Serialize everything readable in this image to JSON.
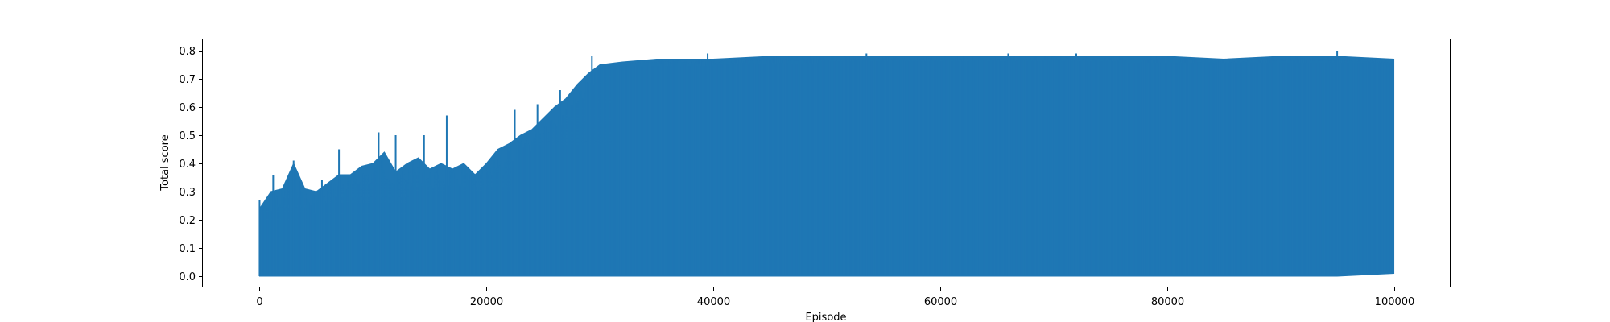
{
  "chart_data": {
    "type": "line",
    "title": "",
    "xlabel": "Episode",
    "ylabel": "Total score",
    "xlim": [
      -5000,
      105000
    ],
    "ylim": [
      -0.04,
      0.84
    ],
    "x_ticks": [
      0,
      20000,
      40000,
      60000,
      80000,
      100000
    ],
    "x_tick_labels": [
      "0",
      "20000",
      "40000",
      "60000",
      "80000",
      "100000"
    ],
    "y_ticks": [
      0.0,
      0.1,
      0.2,
      0.3,
      0.4,
      0.5,
      0.6,
      0.7,
      0.8
    ],
    "y_tick_labels": [
      "0.0",
      "0.1",
      "0.2",
      "0.3",
      "0.4",
      "0.5",
      "0.6",
      "0.7",
      "0.8"
    ],
    "grid": false,
    "legend": "none",
    "line_color": "#1f77b4",
    "series": [
      {
        "x": [
          0,
          1000,
          2000,
          3000,
          4000,
          5000,
          6000,
          7000,
          8000,
          9000,
          10000,
          11000,
          12000,
          13000,
          14000,
          15000,
          16000,
          17000,
          18000,
          19000,
          20000,
          21000,
          22000,
          23000,
          24000,
          25000,
          26000,
          27000,
          28000,
          29000,
          30000,
          32000,
          35000,
          40000,
          45000,
          50000,
          55000,
          60000,
          65000,
          70000,
          75000,
          80000,
          85000,
          90000,
          95000,
          100000
        ],
        "upper": [
          0.24,
          0.3,
          0.31,
          0.4,
          0.31,
          0.3,
          0.33,
          0.36,
          0.36,
          0.39,
          0.4,
          0.44,
          0.37,
          0.4,
          0.42,
          0.38,
          0.4,
          0.38,
          0.4,
          0.36,
          0.4,
          0.45,
          0.47,
          0.5,
          0.52,
          0.56,
          0.6,
          0.63,
          0.68,
          0.72,
          0.75,
          0.76,
          0.77,
          0.77,
          0.78,
          0.78,
          0.78,
          0.78,
          0.78,
          0.78,
          0.78,
          0.78,
          0.77,
          0.78,
          0.78,
          0.77
        ],
        "lower": [
          0.0,
          0.0,
          0.0,
          0.0,
          0.0,
          0.0,
          0.0,
          0.0,
          0.0,
          0.0,
          0.0,
          0.0,
          0.0,
          0.0,
          0.0,
          0.0,
          0.0,
          0.0,
          0.0,
          0.0,
          0.0,
          0.0,
          0.0,
          0.0,
          0.0,
          0.0,
          0.0,
          0.0,
          0.0,
          0.0,
          0.0,
          0.0,
          0.0,
          0.0,
          0.0,
          0.0,
          0.0,
          0.0,
          0.0,
          0.0,
          0.0,
          0.0,
          0.0,
          0.0,
          0.0,
          0.01
        ],
        "peaks": [
          {
            "x": 0,
            "y": 0.27
          },
          {
            "x": 1200,
            "y": 0.36
          },
          {
            "x": 3000,
            "y": 0.41
          },
          {
            "x": 5500,
            "y": 0.34
          },
          {
            "x": 7000,
            "y": 0.45
          },
          {
            "x": 10500,
            "y": 0.51
          },
          {
            "x": 12000,
            "y": 0.5
          },
          {
            "x": 14500,
            "y": 0.5
          },
          {
            "x": 16500,
            "y": 0.57
          },
          {
            "x": 22500,
            "y": 0.59
          },
          {
            "x": 24500,
            "y": 0.61
          },
          {
            "x": 26500,
            "y": 0.66
          },
          {
            "x": 29300,
            "y": 0.78
          },
          {
            "x": 39500,
            "y": 0.79
          },
          {
            "x": 53500,
            "y": 0.79
          },
          {
            "x": 66000,
            "y": 0.79
          },
          {
            "x": 72000,
            "y": 0.79
          },
          {
            "x": 95000,
            "y": 0.8
          }
        ]
      }
    ]
  }
}
